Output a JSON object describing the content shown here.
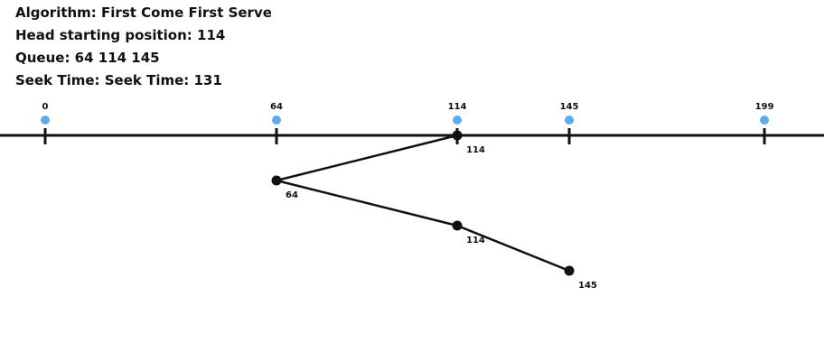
{
  "info": {
    "algorithm": "Algorithm: First Come First Serve",
    "head": "Head starting position: 114",
    "queue": "Queue: 64 114 145",
    "seek": "Seek Time: Seek Time: 131"
  },
  "track": {
    "min": 0,
    "max": 199,
    "ticks": [
      {
        "value": 0,
        "label": "0"
      },
      {
        "value": 64,
        "label": "64"
      },
      {
        "value": 114,
        "label": "114"
      },
      {
        "value": 145,
        "label": "145"
      },
      {
        "value": 199,
        "label": "199"
      }
    ]
  },
  "path": [
    {
      "value": 114,
      "label": "114"
    },
    {
      "value": 64,
      "label": "64"
    },
    {
      "value": 114,
      "label": "114"
    },
    {
      "value": 145,
      "label": "145"
    }
  ],
  "colors": {
    "tick_marker": "#5aaef0",
    "line": "#111111",
    "point": "#111111"
  }
}
